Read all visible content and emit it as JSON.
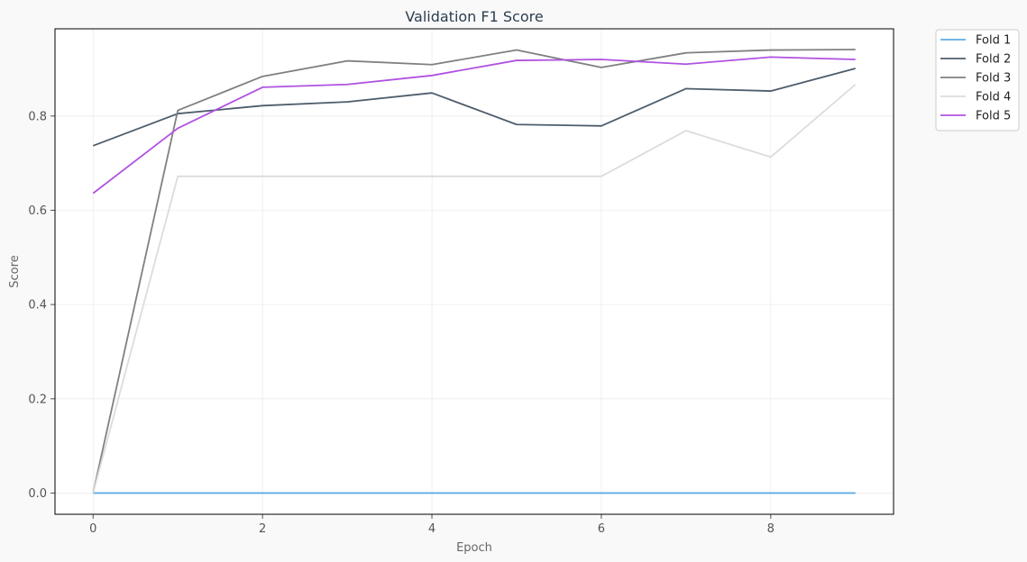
{
  "chart_data": {
    "type": "line",
    "title": "Validation F1 Score",
    "xlabel": "Epoch",
    "ylabel": "Score",
    "xlim": [
      -0.45,
      9.45
    ],
    "ylim": [
      -0.045,
      0.985
    ],
    "x": [
      0,
      1,
      2,
      3,
      4,
      5,
      6,
      7,
      8,
      9
    ],
    "xticks": [
      0,
      2,
      4,
      6,
      8
    ],
    "yticks": [
      0.0,
      0.2,
      0.4,
      0.6,
      0.8
    ],
    "xtick_labels": [
      "0",
      "2",
      "4",
      "6",
      "8"
    ],
    "ytick_labels": [
      "0.0",
      "0.2",
      "0.4",
      "0.6",
      "0.8"
    ],
    "grid": true,
    "legend_position": "outside-top-right",
    "series": [
      {
        "name": "Fold 1",
        "color": "#5dade2",
        "values": [
          0.0,
          0.0,
          0.0,
          0.0,
          0.0,
          0.0,
          0.0,
          0.0,
          0.0,
          0.0
        ]
      },
      {
        "name": "Fold 2",
        "color": "#4e5d6c",
        "values": [
          0.737,
          0.805,
          0.822,
          0.83,
          0.849,
          0.782,
          0.779,
          0.858,
          0.853,
          0.901
        ]
      },
      {
        "name": "Fold 3",
        "color": "#808080",
        "values": [
          0.0,
          0.812,
          0.884,
          0.917,
          0.909,
          0.94,
          0.903,
          0.934,
          0.94,
          0.941
        ]
      },
      {
        "name": "Fold 4",
        "color": "#dcdcdc",
        "values": [
          0.0,
          0.672,
          0.672,
          0.672,
          0.672,
          0.672,
          0.672,
          0.769,
          0.713,
          0.867
        ]
      },
      {
        "name": "Fold 5",
        "color": "#b052e0",
        "values": [
          0.636,
          0.774,
          0.861,
          0.867,
          0.886,
          0.918,
          0.92,
          0.91,
          0.925,
          0.92
        ]
      }
    ]
  }
}
